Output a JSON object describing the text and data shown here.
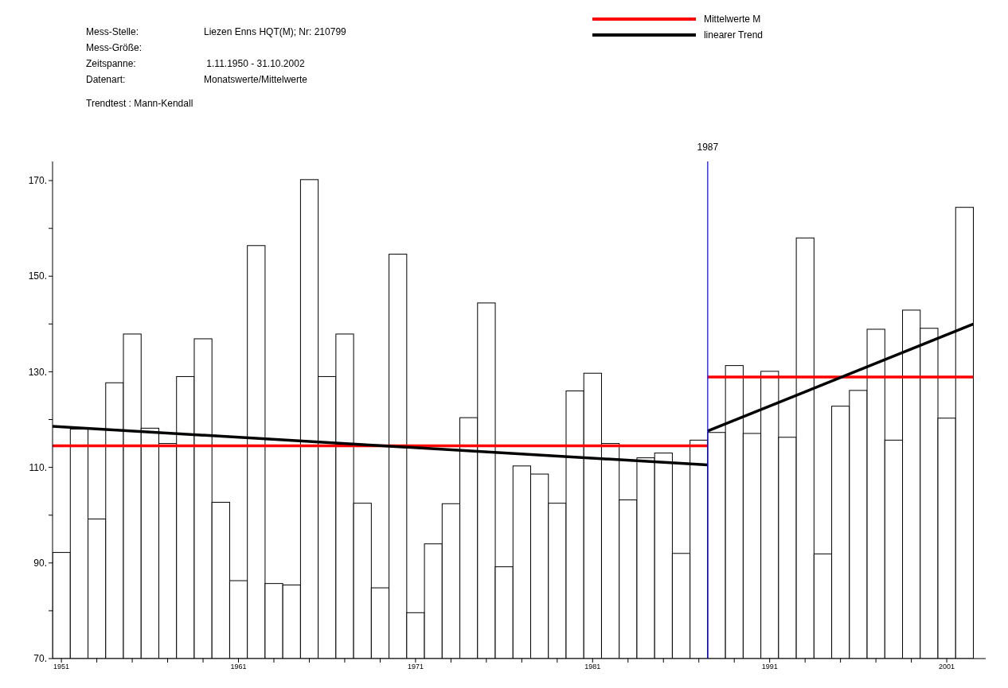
{
  "chart_data": {
    "type": "bar",
    "annotations": [
      "Mess-Stelle:\tLiezen Enns HQT(M); Nr: 210799",
      "Mess-Größe:\t",
      "Zeitspanne:\t 1.11.1950 - 31.10.2002",
      "Datenart:\tMonatswerte/Mittelwerte",
      "Trendtest : Mann-Kendall"
    ],
    "x": [
      1951,
      1952,
      1953,
      1954,
      1955,
      1956,
      1957,
      1958,
      1959,
      1960,
      1961,
      1962,
      1963,
      1964,
      1965,
      1966,
      1967,
      1968,
      1969,
      1970,
      1971,
      1972,
      1973,
      1974,
      1975,
      1976,
      1977,
      1978,
      1979,
      1980,
      1981,
      1982,
      1983,
      1984,
      1985,
      1986,
      1987,
      1988,
      1989,
      1990,
      1991,
      1992,
      1993,
      1994,
      1995,
      1996,
      1997,
      1998,
      1999,
      2000,
      2001,
      2002
    ],
    "series": [
      {
        "color": "#ffffff",
        "values": [
          92.2,
          118,
          99.2,
          127.7,
          137.9,
          118.2,
          115,
          129,
          136.9,
          102.7,
          86.3,
          156.4,
          85.7,
          85.4,
          170.2,
          129,
          137.9,
          102.5,
          84.8,
          154.6,
          79.6,
          94,
          102.4,
          120.4,
          144.4,
          89.2,
          110.3,
          108.6,
          102.5,
          126,
          129.7,
          115,
          103.2,
          112,
          113,
          92,
          115.7,
          117.3,
          131.3,
          117.1,
          130.1,
          116.3,
          158,
          91.9,
          122.8,
          126.1,
          138.9,
          115.7,
          142.9,
          139.1,
          120.3,
          164.4
        ]
      },
      {
        "type": "line",
        "name": "Mittelwerte M",
        "color": "#ff0000",
        "x": [
          1950.5,
          1987.5
        ],
        "values": [
          114.5,
          114.5
        ]
      },
      {
        "type": "line",
        "color": "#ff0000",
        "x": [
          1987.5,
          2002.5
        ],
        "values": [
          128.9,
          128.9
        ]
      },
      {
        "type": "line",
        "name": "linearer Trend",
        "color": "#000000",
        "x": [
          1950.5,
          1987.5
        ],
        "values": [
          118.6,
          110.5
        ]
      },
      {
        "type": "line",
        "color": "#000000",
        "x": [
          1987.5,
          2002.5
        ],
        "values": [
          117.6,
          140.0
        ]
      }
    ],
    "xlim": [
      1950.5,
      2003.2
    ],
    "xticks": [
      1951,
      {
        "value": 1953,
        "label": null
      },
      {
        "value": 1955,
        "label": null
      },
      {
        "value": 1957,
        "label": null
      },
      {
        "value": 1959,
        "label": null
      },
      1961,
      {
        "value": 1963,
        "label": null
      },
      {
        "value": 1965,
        "label": null
      },
      {
        "value": 1967,
        "label": null
      },
      {
        "value": 1969,
        "label": null
      },
      1971,
      {
        "value": 1973,
        "label": null
      },
      {
        "value": 1975,
        "label": null
      },
      {
        "value": 1977,
        "label": null
      },
      {
        "value": 1979,
        "label": null
      },
      1981,
      {
        "value": 1983,
        "label": null
      },
      {
        "value": 1985,
        "label": null
      },
      {
        "value": 1987,
        "label": null
      },
      {
        "value": 1989,
        "label": null
      },
      1991,
      {
        "value": 1993,
        "label": null
      },
      {
        "value": 1995,
        "label": null
      },
      {
        "value": 1997,
        "label": null
      },
      {
        "value": 1999,
        "label": null
      },
      2001
    ],
    "ylim": [
      70,
      174
    ],
    "yticks": [
      {
        "value": 70,
        "label": "70."
      },
      {
        "value": 80,
        "label": null
      },
      {
        "value": 90,
        "label": "90."
      },
      {
        "value": 100,
        "label": null
      },
      {
        "value": 110,
        "label": "110."
      },
      {
        "value": 120,
        "label": null
      },
      {
        "value": 130,
        "label": "130."
      },
      {
        "value": 140,
        "label": null
      },
      {
        "value": 150,
        "label": "150."
      },
      {
        "value": 160,
        "label": null
      },
      {
        "value": 170,
        "label": "170."
      }
    ],
    "ref_lines": [
      {
        "axis": "x",
        "value": 1987.5,
        "label": "1987",
        "color": "#0000ff"
      }
    ],
    "grid": false,
    "legend": "top right"
  }
}
